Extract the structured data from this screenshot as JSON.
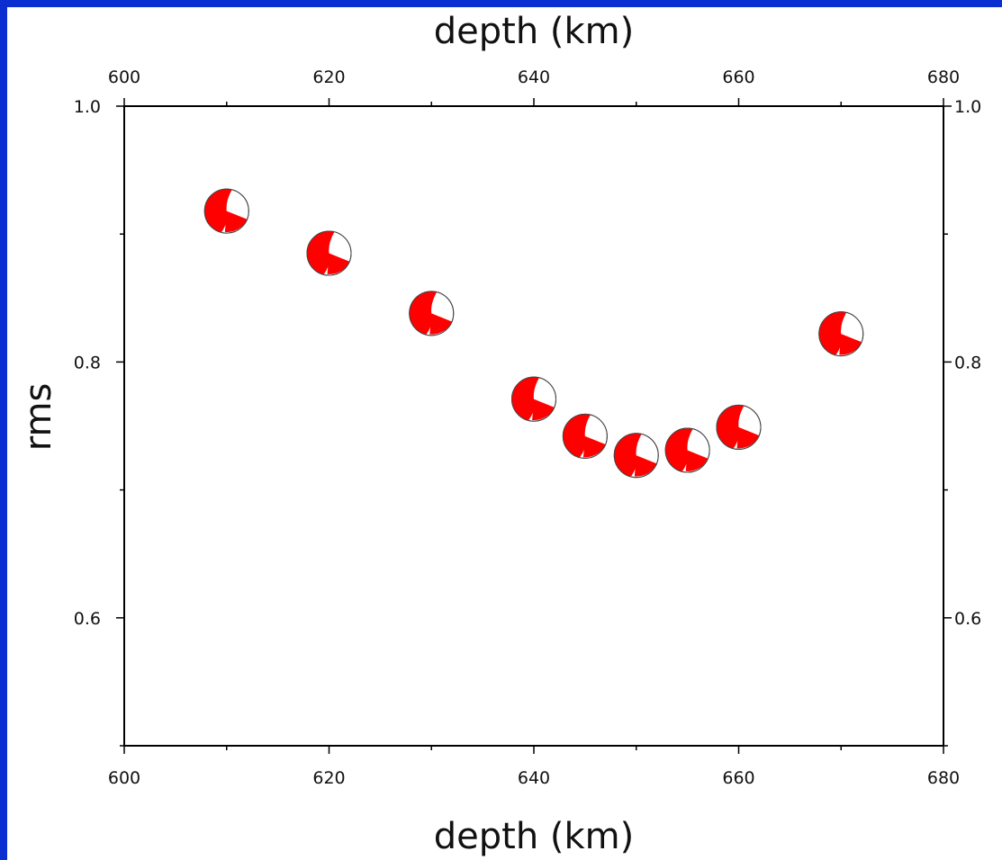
{
  "chart_data": {
    "type": "scatter",
    "marker": "focal-mechanism-beachball",
    "colors": {
      "compressional": "#ff0000",
      "dilatational": "#ffffff",
      "outline": "#444444",
      "frame": "#000000",
      "border": "#0a2ecf"
    },
    "xlabel_top": "depth (km)",
    "xlabel_bottom": "depth (km)",
    "ylabel": "rms",
    "xlim": [
      600,
      680
    ],
    "ylim": [
      0.5,
      1.0
    ],
    "x_ticks": [
      "600",
      "620",
      "640",
      "660",
      "680"
    ],
    "y_ticks": [
      "0.6",
      "0.8",
      "1.0"
    ],
    "grid": false,
    "series": [
      {
        "x": [
          610,
          620,
          630,
          640,
          645,
          650,
          655,
          660,
          670
        ],
        "values": [
          0.918,
          0.885,
          0.838,
          0.771,
          0.742,
          0.727,
          0.731,
          0.749,
          0.822
        ]
      }
    ]
  }
}
